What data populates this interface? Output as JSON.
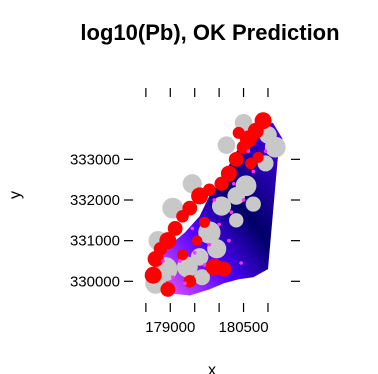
{
  "chart_data": {
    "type": "scatter",
    "title": "log10(Pb), OK Prediction",
    "xlabel": "x",
    "ylabel": "y",
    "xlim": [
      178380,
      181410
    ],
    "ylim": [
      329540,
      334460
    ],
    "x_ticks": [
      179000,
      180500
    ],
    "x_tick_labels": [
      "179000",
      "180500"
    ],
    "y_ticks": [
      330000,
      331000,
      332000,
      333000
    ],
    "y_tick_labels": [
      "330000",
      "331000",
      "332000",
      "333000"
    ],
    "grid": false,
    "legend": "none",
    "colors": {
      "prediction_low": "#ff66ff",
      "prediction_mid": "#4f00ff",
      "prediction_high": "#000066",
      "zinc_points": "#ff0000",
      "kriging_symbols": "#c8c8c8",
      "small_points": "#ff33ff"
    },
    "prediction_surface": [
      {
        "x": [
          178600,
          179000,
          179400,
          179800,
          180100,
          180400,
          180700,
          181000,
          181200,
          181300,
          181100,
          180800,
          180600,
          180300,
          180100,
          179800,
          179600,
          179300,
          179000,
          178800,
          178650
        ],
        "y": [
          330200,
          329700,
          329650,
          329800,
          329950,
          330050,
          330100,
          330300,
          333000,
          333500,
          333900,
          333800,
          333600,
          333100,
          332600,
          332100,
          331600,
          331200,
          330900,
          330600,
          330350
        ]
      }
    ],
    "large_points": [
      {
        "x": 180900,
        "y": 333950,
        "v": 1.0
      },
      {
        "x": 180750,
        "y": 333700,
        "v": 0.9
      },
      {
        "x": 180600,
        "y": 333500,
        "v": 1.0
      },
      {
        "x": 180500,
        "y": 333300,
        "v": 0.7
      },
      {
        "x": 180350,
        "y": 333000,
        "v": 0.8
      },
      {
        "x": 180200,
        "y": 332650,
        "v": 0.9
      },
      {
        "x": 180050,
        "y": 332400,
        "v": 0.75
      },
      {
        "x": 179800,
        "y": 332250,
        "v": 0.6
      },
      {
        "x": 179600,
        "y": 332100,
        "v": 1.0
      },
      {
        "x": 179400,
        "y": 331800,
        "v": 0.8
      },
      {
        "x": 179250,
        "y": 331600,
        "v": 0.6
      },
      {
        "x": 179100,
        "y": 331300,
        "v": 0.8
      },
      {
        "x": 178950,
        "y": 331000,
        "v": 1.0
      },
      {
        "x": 178800,
        "y": 330800,
        "v": 0.7
      },
      {
        "x": 178700,
        "y": 330550,
        "v": 0.9
      },
      {
        "x": 178650,
        "y": 330150,
        "v": 1.0
      },
      {
        "x": 178950,
        "y": 329800,
        "v": 0.8
      },
      {
        "x": 179400,
        "y": 330000,
        "v": 0.6
      },
      {
        "x": 179900,
        "y": 330350,
        "v": 1.0
      },
      {
        "x": 180100,
        "y": 330300,
        "v": 0.8
      },
      {
        "x": 180650,
        "y": 332900,
        "v": 0.5
      },
      {
        "x": 180800,
        "y": 333050,
        "v": 0.45
      },
      {
        "x": 179700,
        "y": 331450,
        "v": 0.45
      },
      {
        "x": 179550,
        "y": 331000,
        "v": 0.4
      },
      {
        "x": 179250,
        "y": 330650,
        "v": 0.45
      },
      {
        "x": 180400,
        "y": 333650,
        "v": 0.55
      }
    ],
    "gray_symbols": [
      {
        "x": 181150,
        "y": 333300,
        "v": 0.8
      },
      {
        "x": 181000,
        "y": 333600,
        "v": 0.6
      },
      {
        "x": 180950,
        "y": 332900,
        "v": 0.5
      },
      {
        "x": 180550,
        "y": 332350,
        "v": 0.8
      },
      {
        "x": 180350,
        "y": 332100,
        "v": 0.6
      },
      {
        "x": 180050,
        "y": 331850,
        "v": 0.7
      },
      {
        "x": 179800,
        "y": 331200,
        "v": 0.9
      },
      {
        "x": 179950,
        "y": 330800,
        "v": 0.7
      },
      {
        "x": 179600,
        "y": 330600,
        "v": 0.6
      },
      {
        "x": 179350,
        "y": 330350,
        "v": 0.8
      },
      {
        "x": 178900,
        "y": 330300,
        "v": 1.0
      },
      {
        "x": 178700,
        "y": 329950,
        "v": 0.8
      },
      {
        "x": 178750,
        "y": 331000,
        "v": 0.7
      },
      {
        "x": 179050,
        "y": 331800,
        "v": 0.8
      },
      {
        "x": 179450,
        "y": 332400,
        "v": 0.7
      },
      {
        "x": 180150,
        "y": 333350,
        "v": 0.6
      },
      {
        "x": 180500,
        "y": 333900,
        "v": 0.6
      },
      {
        "x": 179650,
        "y": 330100,
        "v": 0.5
      },
      {
        "x": 180350,
        "y": 331500,
        "v": 0.4
      },
      {
        "x": 180700,
        "y": 331900,
        "v": 0.45
      }
    ],
    "small_points": [
      {
        "x": 180950,
        "y": 333200
      },
      {
        "x": 180700,
        "y": 332700
      },
      {
        "x": 180500,
        "y": 332000
      },
      {
        "x": 180250,
        "y": 331700
      },
      {
        "x": 180000,
        "y": 331400
      },
      {
        "x": 179800,
        "y": 330900
      },
      {
        "x": 179500,
        "y": 330700
      },
      {
        "x": 179200,
        "y": 330500
      },
      {
        "x": 179050,
        "y": 330100
      },
      {
        "x": 178850,
        "y": 330500
      },
      {
        "x": 179450,
        "y": 331300
      },
      {
        "x": 179900,
        "y": 332000
      },
      {
        "x": 180300,
        "y": 332400
      },
      {
        "x": 180600,
        "y": 333200
      },
      {
        "x": 180200,
        "y": 331000
      },
      {
        "x": 179700,
        "y": 330400
      },
      {
        "x": 179300,
        "y": 329950
      },
      {
        "x": 180450,
        "y": 330450
      }
    ]
  }
}
